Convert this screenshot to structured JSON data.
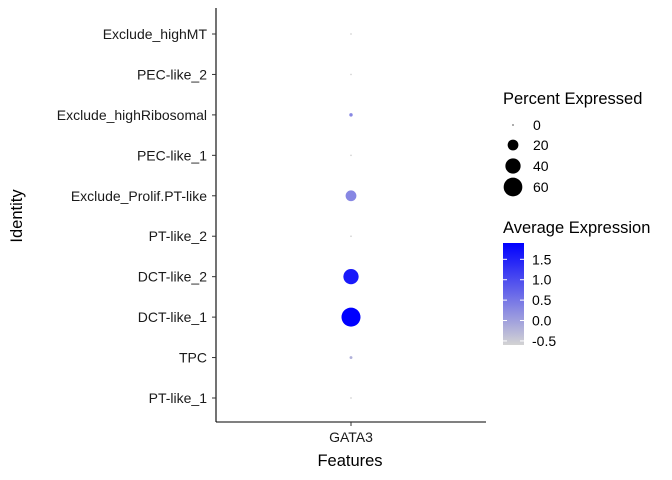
{
  "chart_data": {
    "type": "scatter",
    "subtype": "dot-plot",
    "xlabel": "Features",
    "ylabel": "Identity",
    "features": [
      "GATA3"
    ],
    "identities": [
      "PT-like_1",
      "TPC",
      "DCT-like_1",
      "DCT-like_2",
      "PT-like_2",
      "Exclude_Prolif.PT-like",
      "PEC-like_1",
      "Exclude_highRibosomal",
      "PEC-like_2",
      "Exclude_highMT"
    ],
    "points": [
      {
        "feature": "GATA3",
        "identity": "PT-like_1",
        "pct_exp": 0.5,
        "avg_exp": -0.6
      },
      {
        "feature": "GATA3",
        "identity": "TPC",
        "pct_exp": 1.5,
        "avg_exp": -0.2
      },
      {
        "feature": "GATA3",
        "identity": "DCT-like_1",
        "pct_exp": 62,
        "avg_exp": 1.9
      },
      {
        "feature": "GATA3",
        "identity": "DCT-like_2",
        "pct_exp": 40,
        "avg_exp": 1.6
      },
      {
        "feature": "GATA3",
        "identity": "PT-like_2",
        "pct_exp": 0.5,
        "avg_exp": -0.6
      },
      {
        "feature": "GATA3",
        "identity": "Exclude_Prolif.PT-like",
        "pct_exp": 20,
        "avg_exp": 0.3
      },
      {
        "feature": "GATA3",
        "identity": "PEC-like_1",
        "pct_exp": 0.5,
        "avg_exp": -0.6
      },
      {
        "feature": "GATA3",
        "identity": "Exclude_highRibosomal",
        "pct_exp": 2,
        "avg_exp": 0.3
      },
      {
        "feature": "GATA3",
        "identity": "PEC-like_2",
        "pct_exp": 0.5,
        "avg_exp": -0.6
      },
      {
        "feature": "GATA3",
        "identity": "Exclude_highMT",
        "pct_exp": 0.5,
        "avg_exp": -0.6
      }
    ],
    "size_legend": {
      "title": "Percent Expressed",
      "values": [
        0,
        20,
        40,
        60
      ],
      "labels": [
        "0",
        "20",
        "40",
        "60"
      ]
    },
    "color_legend": {
      "title": "Average Expression",
      "min": -0.6,
      "max": 1.9,
      "ticks": [
        1.5,
        1.0,
        0.5,
        0.0,
        -0.5
      ],
      "tick_labels": [
        "1.5",
        "1.0",
        "0.5",
        "0.0",
        "-0.5"
      ],
      "low_color": "#d3d3d3",
      "high_color": "#0000ff"
    },
    "grid": false,
    "legend_position": "right"
  }
}
